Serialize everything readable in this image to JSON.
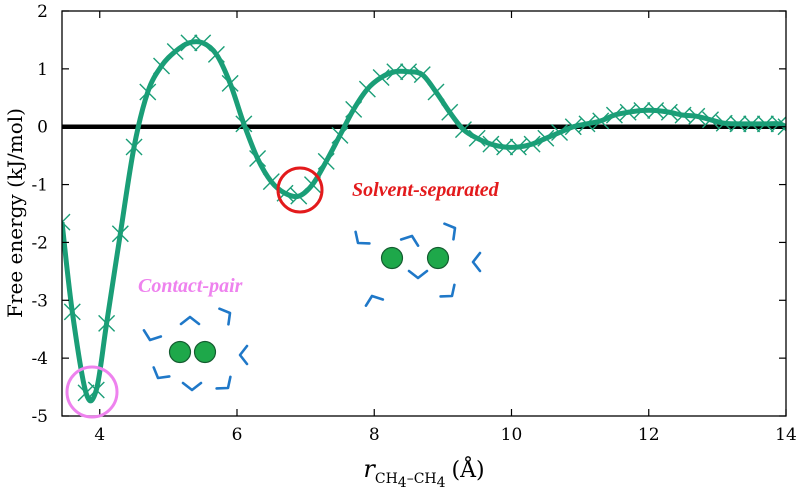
{
  "chart_data": {
    "type": "line",
    "title": "",
    "ylabel": "Free energy (kJ/mol)",
    "xlabel": {
      "variable": "r",
      "subscript": "CH",
      "sub4": "4",
      "dash": "–",
      "unit": "(Å)"
    },
    "xlim": [
      3.45,
      14
    ],
    "ylim": [
      -5,
      2
    ],
    "x_ticks": [
      4,
      6,
      8,
      10,
      12,
      14
    ],
    "y_ticks": [
      -5,
      -4,
      -3,
      -2,
      -1,
      0,
      1,
      2
    ],
    "grid": false,
    "zero_line": true,
    "series": [
      {
        "marker": "x",
        "color": "#1a9e77",
        "x": [
          3.45,
          3.6,
          3.8,
          3.95,
          4.1,
          4.3,
          4.5,
          4.7,
          4.9,
          5.1,
          5.3,
          5.5,
          5.7,
          5.9,
          6.1,
          6.3,
          6.5,
          6.7,
          6.9,
          7.1,
          7.3,
          7.5,
          7.7,
          7.9,
          8.1,
          8.3,
          8.5,
          8.7,
          8.9,
          9.1,
          9.3,
          9.5,
          9.7,
          9.9,
          10.1,
          10.3,
          10.5,
          10.7,
          10.9,
          11.1,
          11.3,
          11.5,
          11.7,
          11.9,
          12.1,
          12.3,
          12.5,
          12.7,
          12.9,
          13.1,
          13.3,
          13.5,
          13.7,
          13.9,
          14.0
        ],
        "y": [
          -1.65,
          -3.2,
          -4.6,
          -4.55,
          -3.4,
          -1.85,
          -0.35,
          0.6,
          1.05,
          1.3,
          1.45,
          1.45,
          1.25,
          0.75,
          0.05,
          -0.55,
          -0.95,
          -1.15,
          -1.2,
          -1.0,
          -0.6,
          -0.15,
          0.3,
          0.65,
          0.85,
          0.95,
          0.95,
          0.9,
          0.6,
          0.25,
          -0.05,
          -0.2,
          -0.3,
          -0.35,
          -0.35,
          -0.3,
          -0.2,
          -0.1,
          0.0,
          0.05,
          0.1,
          0.2,
          0.25,
          0.28,
          0.28,
          0.25,
          0.2,
          0.18,
          0.12,
          0.06,
          0.05,
          0.05,
          0.05,
          0.05,
          0.0
        ]
      }
    ],
    "annotations": [
      {
        "text": "Contact-pair",
        "color": "#ee82ee"
      },
      {
        "text": "Solvent-separated",
        "color": "#e31a1c"
      }
    ]
  }
}
